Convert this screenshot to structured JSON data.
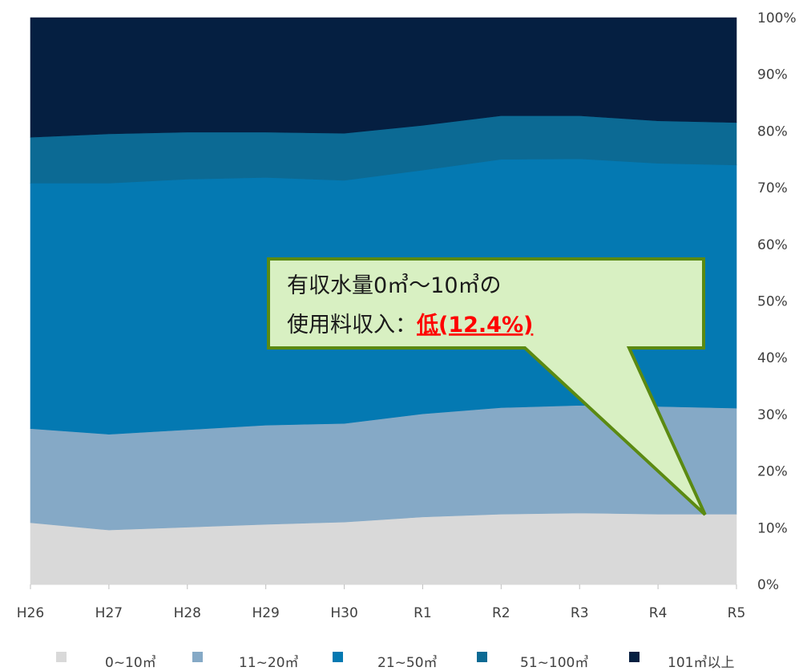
{
  "chart_data": {
    "type": "area",
    "stacked": true,
    "categories": [
      "H26",
      "H27",
      "H28",
      "H29",
      "H30",
      "R1",
      "R2",
      "R3",
      "R4",
      "R5"
    ],
    "ylim": [
      0,
      100
    ],
    "yticks": [
      "0%",
      "10%",
      "20%",
      "30%",
      "40%",
      "50%",
      "60%",
      "70%",
      "80%",
      "90%",
      "100%"
    ],
    "y_axis_position": "right",
    "grid": false,
    "legend_position": "bottom",
    "series": [
      {
        "name": "0~10㎥",
        "color": "#d9d9d9",
        "values": [
          10.9,
          9.6,
          10.1,
          10.6,
          11.0,
          11.9,
          12.4,
          12.6,
          12.4,
          12.4
        ]
      },
      {
        "name": "11~20㎥",
        "color": "#85a9c6",
        "values": [
          16.6,
          16.9,
          17.2,
          17.5,
          17.4,
          18.2,
          18.8,
          19.0,
          19.0,
          18.7
        ]
      },
      {
        "name": "21~50㎥",
        "color": "#0479b2",
        "values": [
          43.3,
          44.3,
          44.2,
          43.7,
          42.9,
          43.0,
          43.8,
          43.5,
          42.9,
          42.9
        ]
      },
      {
        "name": "51~100㎥",
        "color": "#0c6a94",
        "values": [
          8.1,
          8.7,
          8.3,
          8.0,
          8.3,
          7.9,
          7.7,
          7.6,
          7.5,
          7.5
        ]
      },
      {
        "name": "101㎥以上",
        "color": "#051f41",
        "values": [
          21.1,
          20.5,
          20.2,
          20.2,
          20.4,
          19.0,
          17.3,
          17.3,
          18.2,
          18.5
        ]
      }
    ],
    "annotation": {
      "line1": "有収水量0㎥～10㎥の",
      "line2_prefix": "使用料収入：",
      "line2_highlight": "低(12.4%)",
      "fill": "#d8f0c2",
      "border": "#5b8a12",
      "highlight_color": "#ff0000"
    }
  }
}
